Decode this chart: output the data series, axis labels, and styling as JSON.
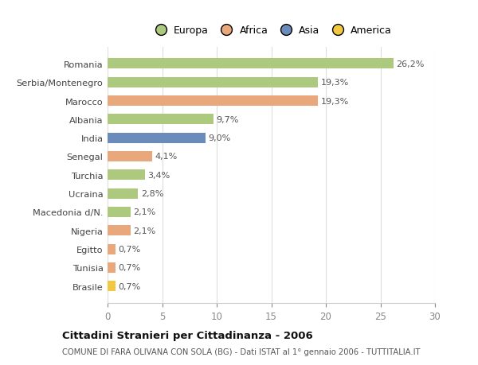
{
  "categories": [
    "Romania",
    "Serbia/Montenegro",
    "Marocco",
    "Albania",
    "India",
    "Senegal",
    "Turchia",
    "Ucraina",
    "Macedonia d/N.",
    "Nigeria",
    "Egitto",
    "Tunisia",
    "Brasile"
  ],
  "values": [
    26.2,
    19.3,
    19.3,
    9.7,
    9.0,
    4.1,
    3.4,
    2.8,
    2.1,
    2.1,
    0.7,
    0.7,
    0.7
  ],
  "labels": [
    "26,2%",
    "19,3%",
    "19,3%",
    "9,7%",
    "9,0%",
    "4,1%",
    "3,4%",
    "2,8%",
    "2,1%",
    "2,1%",
    "0,7%",
    "0,7%",
    "0,7%"
  ],
  "colors": [
    "#adc97e",
    "#adc97e",
    "#e8a87c",
    "#adc97e",
    "#6b8cba",
    "#e8a87c",
    "#adc97e",
    "#adc97e",
    "#adc97e",
    "#e8a87c",
    "#e8a87c",
    "#e8a87c",
    "#f0c842"
  ],
  "legend_labels": [
    "Europa",
    "Africa",
    "Asia",
    "America"
  ],
  "legend_colors": [
    "#adc97e",
    "#e8a87c",
    "#6b8cba",
    "#f0c842"
  ],
  "title": "Cittadini Stranieri per Cittadinanza - 2006",
  "subtitle": "COMUNE DI FARA OLIVANA CON SOLA (BG) - Dati ISTAT al 1° gennaio 2006 - TUTTITALIA.IT",
  "xlim": [
    0,
    30
  ],
  "xticks": [
    0,
    5,
    10,
    15,
    20,
    25,
    30
  ],
  "background_color": "#ffffff",
  "plot_background": "#ffffff"
}
